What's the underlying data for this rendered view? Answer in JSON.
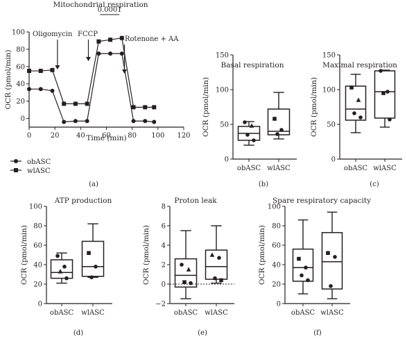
{
  "chart_data": [
    {
      "panel": "(a)",
      "type": "line",
      "title": "Mitochondrial respiration",
      "xlabel": "Time (min)",
      "ylabel": "OCR (pmol/min)",
      "xlim": [
        0,
        120
      ],
      "ylim": [
        -10,
        100
      ],
      "xticks": [
        0,
        20,
        40,
        60,
        80,
        100,
        120
      ],
      "yticks": [
        0,
        20,
        40,
        60,
        80,
        100
      ],
      "pvalue": "0.0001",
      "annotations": [
        {
          "label": "Oligomycin",
          "x": 22
        },
        {
          "label": "FCCP",
          "x": 46
        },
        {
          "label": "Rotenone + AA",
          "x": 74
        }
      ],
      "legend": [
        "obASC",
        "wlASC"
      ],
      "series": [
        {
          "name": "obASC",
          "marker": "circle",
          "x": [
            0,
            9,
            18,
            27,
            36,
            45,
            54,
            63,
            72,
            81,
            90,
            97
          ],
          "y": [
            34,
            34,
            32,
            -4,
            -3,
            -3,
            75,
            75,
            75,
            -3,
            -3,
            -4
          ]
        },
        {
          "name": "wlASC",
          "marker": "square",
          "x": [
            0,
            9,
            18,
            27,
            36,
            45,
            54,
            63,
            72,
            81,
            90,
            97
          ],
          "y": [
            55,
            55,
            56,
            17,
            17,
            17,
            89,
            91,
            93,
            13,
            13,
            13
          ]
        }
      ]
    },
    {
      "panel": "(b)",
      "type": "box",
      "title": "Basal respiration",
      "ylabel": "OCR (pmol/min)",
      "ylim": [
        0,
        150
      ],
      "yticks": [
        0,
        50,
        100,
        150
      ],
      "categories": [
        "obASC",
        "wlASC"
      ],
      "boxes": [
        {
          "min": 20,
          "q1": 27,
          "median": 37,
          "q3": 47,
          "max": 54,
          "points": [
            {
              "y": 53,
              "m": "circle"
            },
            {
              "y": 48,
              "m": "triangle"
            },
            {
              "y": 35,
              "m": "circle"
            },
            {
              "y": 27,
              "m": "circle"
            }
          ]
        },
        {
          "min": 29,
          "q1": 35,
          "median": 40,
          "q3": 72,
          "max": 96,
          "points": [
            {
              "y": 58,
              "m": "square"
            },
            {
              "y": 42,
              "m": "circle"
            },
            {
              "y": 36,
              "m": "circle"
            }
          ]
        }
      ]
    },
    {
      "panel": "(c)",
      "type": "box",
      "title": "Maximal respiration",
      "ylabel": "OCR (pmol/min)",
      "ylim": [
        0,
        150
      ],
      "yticks": [
        0,
        50,
        100,
        150
      ],
      "categories": [
        "obASC",
        "wlASC"
      ],
      "boxes": [
        {
          "min": 38,
          "q1": 56,
          "median": 72,
          "q3": 105,
          "max": 122,
          "points": [
            {
              "y": 103,
              "m": "square"
            },
            {
              "y": 85,
              "m": "triangle"
            },
            {
              "y": 66,
              "m": "circle"
            },
            {
              "y": 60,
              "m": "circle"
            }
          ]
        },
        {
          "min": 46,
          "q1": 59,
          "median": 97,
          "q3": 127,
          "max": 128,
          "points": [
            {
              "y": 127,
              "m": "circle"
            },
            {
              "y": 97,
              "m": "circle"
            },
            {
              "y": 95,
              "m": "square"
            },
            {
              "y": 57,
              "m": "circle"
            }
          ]
        }
      ]
    },
    {
      "panel": "(d)",
      "type": "box",
      "title": "ATP production",
      "ylabel": "OCR (pmol/min)",
      "ylim": [
        0,
        100
      ],
      "yticks": [
        0,
        20,
        40,
        60,
        80,
        100
      ],
      "categories": [
        "obASC",
        "wlASC"
      ],
      "boxes": [
        {
          "min": 21,
          "q1": 26,
          "median": 32,
          "q3": 45,
          "max": 52,
          "points": [
            {
              "y": 49,
              "m": "circle"
            },
            {
              "y": 38,
              "m": "circle"
            },
            {
              "y": 33,
              "m": "triangle"
            },
            {
              "y": 26,
              "m": "circle"
            }
          ]
        },
        {
          "min": 27,
          "q1": 28,
          "median": 38,
          "q3": 64,
          "max": 82,
          "points": [
            {
              "y": 52,
              "m": "square"
            },
            {
              "y": 38,
              "m": "circle"
            },
            {
              "y": 27,
              "m": "circle"
            }
          ]
        }
      ]
    },
    {
      "panel": "(e)",
      "type": "box",
      "title": "Proton leak",
      "ylabel": "OCR (pmol/min)",
      "ylim": [
        -2,
        8
      ],
      "yticks": [
        -2,
        0,
        2,
        4,
        6,
        8
      ],
      "zero_line": true,
      "categories": [
        "obASC",
        "wlASC"
      ],
      "boxes": [
        {
          "min": -1.5,
          "q1": -0.3,
          "median": 0.9,
          "q3": 2.6,
          "max": 5.5,
          "points": [
            {
              "y": 2.0,
              "m": "circle"
            },
            {
              "y": 1.5,
              "m": "triangle"
            },
            {
              "y": 0.2,
              "m": "square"
            },
            {
              "y": 0.1,
              "m": "circle"
            }
          ]
        },
        {
          "min": 0.1,
          "q1": 0.5,
          "median": 1.8,
          "q3": 3.5,
          "max": 6.0,
          "points": [
            {
              "y": 3.0,
              "m": "triangle"
            },
            {
              "y": 2.7,
              "m": "circle"
            },
            {
              "y": 0.6,
              "m": "circle"
            },
            {
              "y": 0.4,
              "m": "square"
            }
          ]
        }
      ]
    },
    {
      "panel": "(f)",
      "type": "box",
      "title": "Spare respiratory capacity",
      "ylabel": "OCR (pmol/min)",
      "ylim": [
        0,
        100
      ],
      "yticks": [
        0,
        20,
        40,
        60,
        80,
        100
      ],
      "categories": [
        "obASC",
        "wlASC"
      ],
      "boxes": [
        {
          "min": 10,
          "q1": 23,
          "median": 37,
          "q3": 56,
          "max": 86,
          "points": [
            {
              "y": 46,
              "m": "square"
            },
            {
              "y": 37,
              "m": "circle"
            },
            {
              "y": 29,
              "m": "circle"
            },
            {
              "y": 24,
              "m": "circle"
            }
          ]
        },
        {
          "min": 5,
          "q1": 15,
          "median": 43,
          "q3": 73,
          "max": 94,
          "points": [
            {
              "y": 52,
              "m": "square"
            },
            {
              "y": 48,
              "m": "circle"
            },
            {
              "y": 18,
              "m": "circle"
            }
          ]
        }
      ]
    }
  ]
}
